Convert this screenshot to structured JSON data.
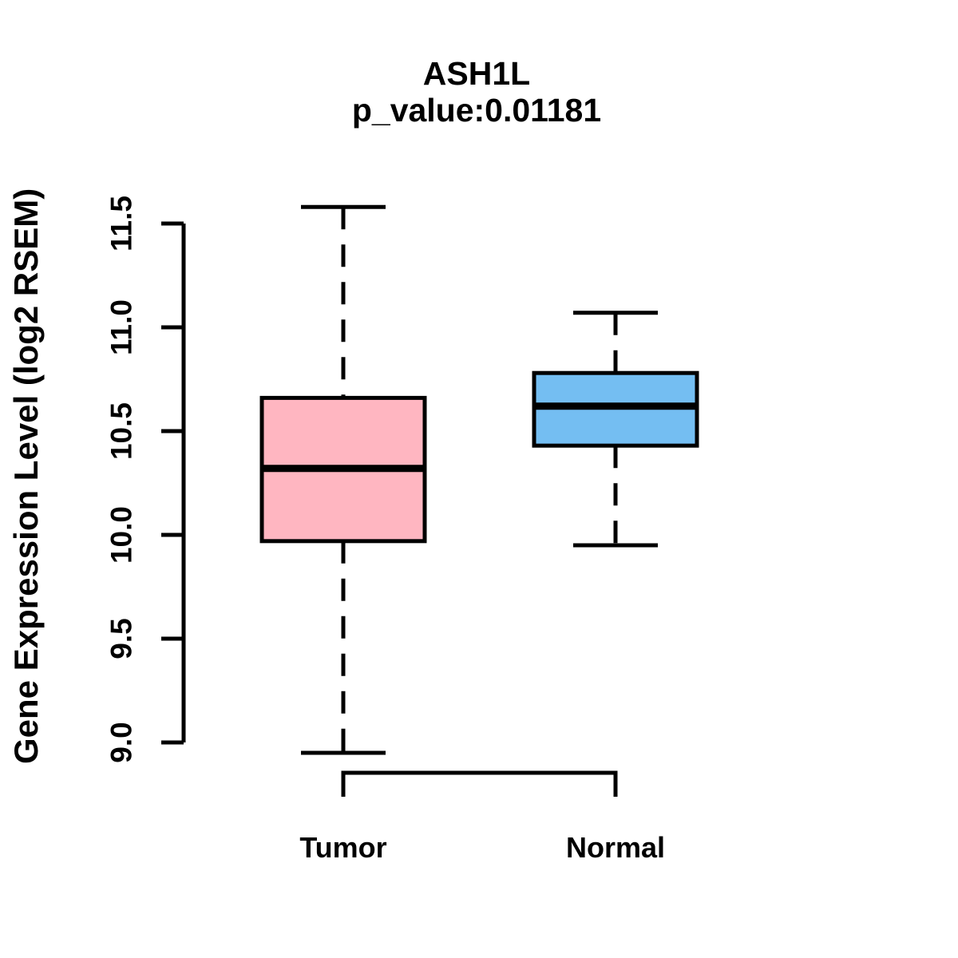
{
  "chart_data": {
    "type": "boxplot",
    "title": "ASH1L",
    "subtitle": "p_value:0.01181",
    "ylabel": "Gene Expression Level (log2 RSEM)",
    "ylim": [
      9.0,
      11.5
    ],
    "yticks": [
      9.0,
      9.5,
      10.0,
      10.5,
      11.0,
      11.5
    ],
    "ytick_labels": [
      "9.0",
      "9.5",
      "10.0",
      "10.5",
      "11.0",
      "11.5"
    ],
    "categories": [
      "Tumor",
      "Normal"
    ],
    "series": [
      {
        "name": "Tumor",
        "color": "#FFB6C1",
        "whisker_low": 8.95,
        "q1": 9.97,
        "median": 10.32,
        "q3": 10.66,
        "whisker_high": 11.58
      },
      {
        "name": "Normal",
        "color": "#74BEF2",
        "whisker_low": 9.95,
        "q1": 10.43,
        "median": 10.62,
        "q3": 10.78,
        "whisker_high": 11.07
      }
    ],
    "stroke_color": "#000000",
    "background_color": "#FFFFFF",
    "grid": false,
    "legend": "none"
  }
}
